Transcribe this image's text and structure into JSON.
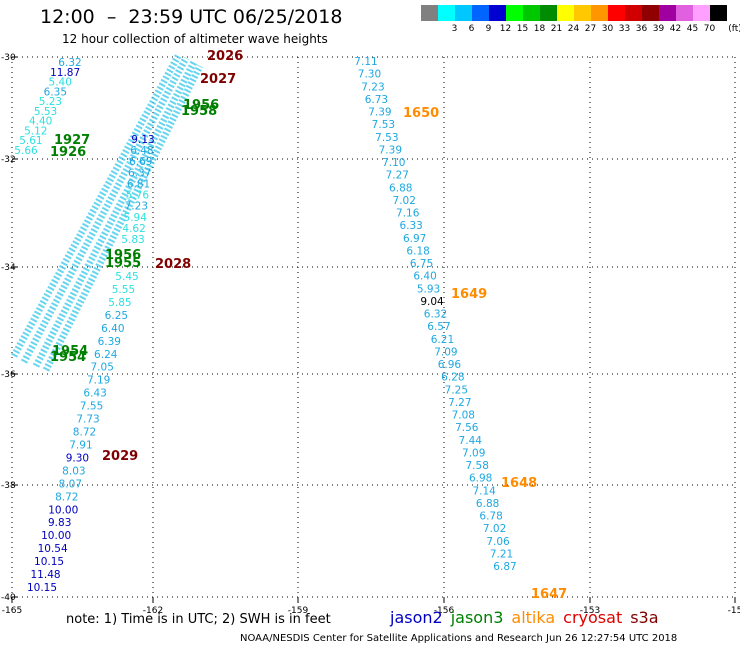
{
  "header": {
    "title": "12:00  –  23:59 UTC 06/25/2018",
    "subtitle": "12 hour collection of altimeter wave heights"
  },
  "legend": {
    "unit": "(ft)",
    "items": [
      {
        "color": "#808080",
        "label": ""
      },
      {
        "color": "#00ffff",
        "label": "3"
      },
      {
        "color": "#00c8ff",
        "label": "6"
      },
      {
        "color": "#0064ff",
        "label": "9"
      },
      {
        "color": "#0000d0",
        "label": "12"
      },
      {
        "color": "#00ff00",
        "label": "15"
      },
      {
        "color": "#00c800",
        "label": "18"
      },
      {
        "color": "#008c00",
        "label": "21"
      },
      {
        "color": "#ffff00",
        "label": "24"
      },
      {
        "color": "#ffc800",
        "label": "27"
      },
      {
        "color": "#ff9600",
        "label": "30"
      },
      {
        "color": "#ff0000",
        "label": "33"
      },
      {
        "color": "#d00000",
        "label": "36"
      },
      {
        "color": "#900000",
        "label": "39"
      },
      {
        "color": "#a000a0",
        "label": "42"
      },
      {
        "color": "#e060e0",
        "label": "45"
      },
      {
        "color": "#ffa0ff",
        "label": "70"
      },
      {
        "color": "#000000",
        "label": ""
      }
    ]
  },
  "axes": {
    "x_ticks": [
      "-165",
      "-162",
      "-159",
      "-156",
      "-153",
      "-15"
    ],
    "y_ticks": [
      "-30",
      "-32",
      "-34",
      "-36",
      "-38",
      "-40"
    ]
  },
  "tracks": {
    "east": {
      "color": "#1fa8e0",
      "values": [
        "7.11",
        "7.30",
        "7.23",
        "6.73",
        "7.39",
        "7.53",
        "7.53",
        "7.39",
        "7.10",
        "7.27",
        "6.88",
        "7.02",
        "7.16",
        "6.33",
        "6.97",
        "6.18",
        "6.75",
        "6.40",
        "5.93",
        "9.04",
        "6.32",
        "6.57",
        "6.21",
        "7.09",
        "6.96",
        "6.28",
        "7.25",
        "7.27",
        "7.08",
        "7.56",
        "7.44",
        "7.09",
        "7.58",
        "6.98",
        "7.14",
        "6.88",
        "6.78",
        "7.02",
        "7.06",
        "7.21",
        "6.87"
      ],
      "highlight": {
        "index": 19,
        "color": "#000000"
      }
    },
    "west_top": {
      "values": [
        {
          "v": "6.32",
          "c": "#1fa8e0"
        },
        {
          "v": "11.87",
          "c": "#0000c0"
        },
        {
          "v": "5.40",
          "c": "#2ee0e0"
        },
        {
          "v": "6.35",
          "c": "#1fa8e0"
        },
        {
          "v": "5.23",
          "c": "#2ee0e0"
        },
        {
          "v": "5.53",
          "c": "#2ee0e0"
        },
        {
          "v": "4.40",
          "c": "#2ee0e0"
        },
        {
          "v": "5.12",
          "c": "#2ee0e0"
        },
        {
          "v": "5.61",
          "c": "#2ee0e0"
        },
        {
          "v": "5.66",
          "c": "#2ee0e0"
        }
      ]
    },
    "west_mid": {
      "values": [
        {
          "v": "9.13",
          "c": "#0000c0"
        },
        {
          "v": "6.48",
          "c": "#1fa8e0"
        },
        {
          "v": "6.69",
          "c": "#1fa8e0"
        },
        {
          "v": "6.37",
          "c": "#1fa8e0"
        },
        {
          "v": "6.81",
          "c": "#1fa8e0"
        },
        {
          "v": "5.76",
          "c": "#2ee0e0"
        },
        {
          "v": "7.23",
          "c": "#1fa8e0"
        },
        {
          "v": "5.94",
          "c": "#2ee0e0"
        },
        {
          "v": "4.62",
          "c": "#2ee0e0"
        },
        {
          "v": "5.83",
          "c": "#2ee0e0"
        }
      ]
    },
    "west_lower": {
      "values": [
        {
          "v": "5.45",
          "c": "#2ee0e0"
        },
        {
          "v": "5.55",
          "c": "#2ee0e0"
        },
        {
          "v": "5.85",
          "c": "#2ee0e0"
        },
        {
          "v": "6.25",
          "c": "#1fa8e0"
        },
        {
          "v": "6.40",
          "c": "#1fa8e0"
        },
        {
          "v": "6.39",
          "c": "#1fa8e0"
        },
        {
          "v": "6.24",
          "c": "#1fa8e0"
        },
        {
          "v": "7.05",
          "c": "#1fa8e0"
        },
        {
          "v": "7.19",
          "c": "#1fa8e0"
        },
        {
          "v": "6.43",
          "c": "#1fa8e0"
        },
        {
          "v": "7.55",
          "c": "#1fa8e0"
        },
        {
          "v": "7.73",
          "c": "#1fa8e0"
        },
        {
          "v": "8.72",
          "c": "#1fa8e0"
        },
        {
          "v": "7.91",
          "c": "#1fa8e0"
        },
        {
          "v": "9.30",
          "c": "#0000c0"
        },
        {
          "v": "8.03",
          "c": "#1fa8e0"
        },
        {
          "v": "8.07",
          "c": "#1fa8e0"
        },
        {
          "v": "8.72",
          "c": "#1fa8e0"
        },
        {
          "v": "10.00",
          "c": "#0000c0"
        },
        {
          "v": "9.83",
          "c": "#0000c0"
        },
        {
          "v": "10.00",
          "c": "#0000c0"
        },
        {
          "v": "10.54",
          "c": "#0000c0"
        },
        {
          "v": "10.15",
          "c": "#0000c0"
        },
        {
          "v": "11.48",
          "c": "#0000c0"
        },
        {
          "v": "10.15",
          "c": "#0000c0"
        }
      ]
    }
  },
  "time_labels": [
    {
      "text": "2026",
      "color": "#800000"
    },
    {
      "text": "2027",
      "color": "#800000"
    },
    {
      "text": "1956",
      "color": "#008000"
    },
    {
      "text": "1958",
      "color": "#008000"
    },
    {
      "text": "1927",
      "color": "#008000"
    },
    {
      "text": "1926",
      "color": "#008000"
    },
    {
      "text": "1956",
      "color": "#008000"
    },
    {
      "text": "1955",
      "color": "#008000"
    },
    {
      "text": "2028",
      "color": "#800000"
    },
    {
      "text": "1954",
      "color": "#008000"
    },
    {
      "text": "1954",
      "color": "#008000"
    },
    {
      "text": "2029",
      "color": "#800000"
    },
    {
      "text": "1650",
      "color": "#ff8c00"
    },
    {
      "text": "1649",
      "color": "#ff8c00"
    },
    {
      "text": "1648",
      "color": "#ff8c00"
    },
    {
      "text": "1647",
      "color": "#ff8c00"
    }
  ],
  "footer": {
    "note": "note:  1) Time is in UTC;  2) SWH is in feet",
    "satellites": [
      {
        "name": "jason2",
        "color": "#0000c0"
      },
      {
        "name": "jason3",
        "color": "#008000"
      },
      {
        "name": "altika",
        "color": "#ff8c00"
      },
      {
        "name": "cryosat",
        "color": "#e00000"
      },
      {
        "name": "s3a",
        "color": "#800000"
      }
    ],
    "credit": "NOAA/NESDIS Center for Satellite Applications and Research    Jun 26 12:27:54 UTC 2018"
  }
}
